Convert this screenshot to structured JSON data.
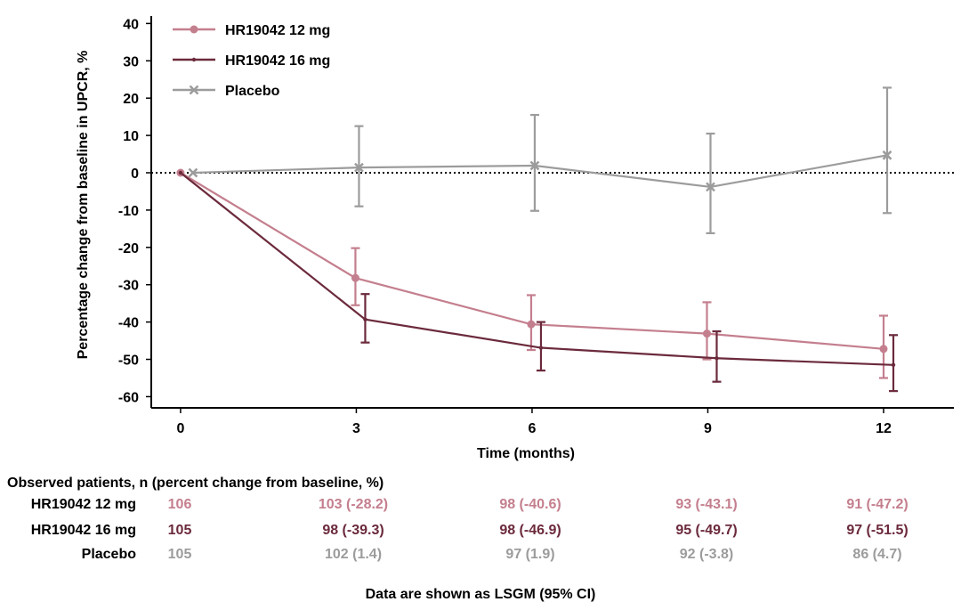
{
  "chart_data": {
    "type": "line",
    "xlabel": "Time (months)",
    "ylabel": "Percentage change from baseline in UPCR, %",
    "x": [
      0,
      3,
      6,
      9,
      12
    ],
    "xticks": [
      "0",
      "3",
      "6",
      "9",
      "12"
    ],
    "yticks": [
      "40",
      "30",
      "20",
      "10",
      "0",
      "-10",
      "-20",
      "-30",
      "-40",
      "-50",
      "-60"
    ],
    "xlim": [
      -0.5,
      13.2
    ],
    "ylim": [
      -63,
      42
    ],
    "reference_line": 0,
    "series": [
      {
        "name": "HR19042 12 mg",
        "color": "#c47f8e",
        "marker": "circle",
        "values": [
          0,
          -28.2,
          -40.6,
          -43.1,
          -47.2
        ],
        "ci_low": [
          0,
          -35.5,
          -47.5,
          -50.0,
          -55.0
        ],
        "ci_high": [
          0,
          -20.2,
          -32.8,
          -34.7,
          -38.3
        ]
      },
      {
        "name": "HR19042 16 mg",
        "color": "#6b2a3c",
        "marker": "dot",
        "values": [
          0,
          -39.3,
          -46.9,
          -49.7,
          -51.5
        ],
        "ci_low": [
          0,
          -45.5,
          -53.0,
          -56.0,
          -58.5
        ],
        "ci_high": [
          0,
          -32.5,
          -40.0,
          -42.5,
          -43.5
        ]
      },
      {
        "name": "Placebo",
        "color": "#9c9c9c",
        "marker": "x",
        "values": [
          0,
          1.4,
          1.9,
          -3.8,
          4.7
        ],
        "ci_low": [
          0,
          -9.0,
          -10.2,
          -16.2,
          -10.8
        ],
        "ci_high": [
          0,
          12.5,
          15.5,
          10.5,
          22.8
        ]
      }
    ]
  },
  "table": {
    "header": "Observed patients, n (percent change from baseline, %)",
    "rows": [
      {
        "label": "HR19042 12 mg",
        "color": "#c47f8e",
        "cells": [
          "106",
          "103 (-28.2)",
          "98 (-40.6)",
          "93 (-43.1)",
          "91 (-47.2)"
        ]
      },
      {
        "label": "HR19042 16 mg",
        "color": "#6b2a3c",
        "cells": [
          "105",
          "98 (-39.3)",
          "98 (-46.9)",
          "95 (-49.7)",
          "97 (-51.5)"
        ]
      },
      {
        "label": "Placebo",
        "color": "#9c9c9c",
        "cells": [
          "105",
          "102 (1.4)",
          "97 (1.9)",
          "92 (-3.8)",
          "86 (4.7)"
        ]
      }
    ]
  },
  "footnote": "Data are shown as LSGM (95% CI)"
}
